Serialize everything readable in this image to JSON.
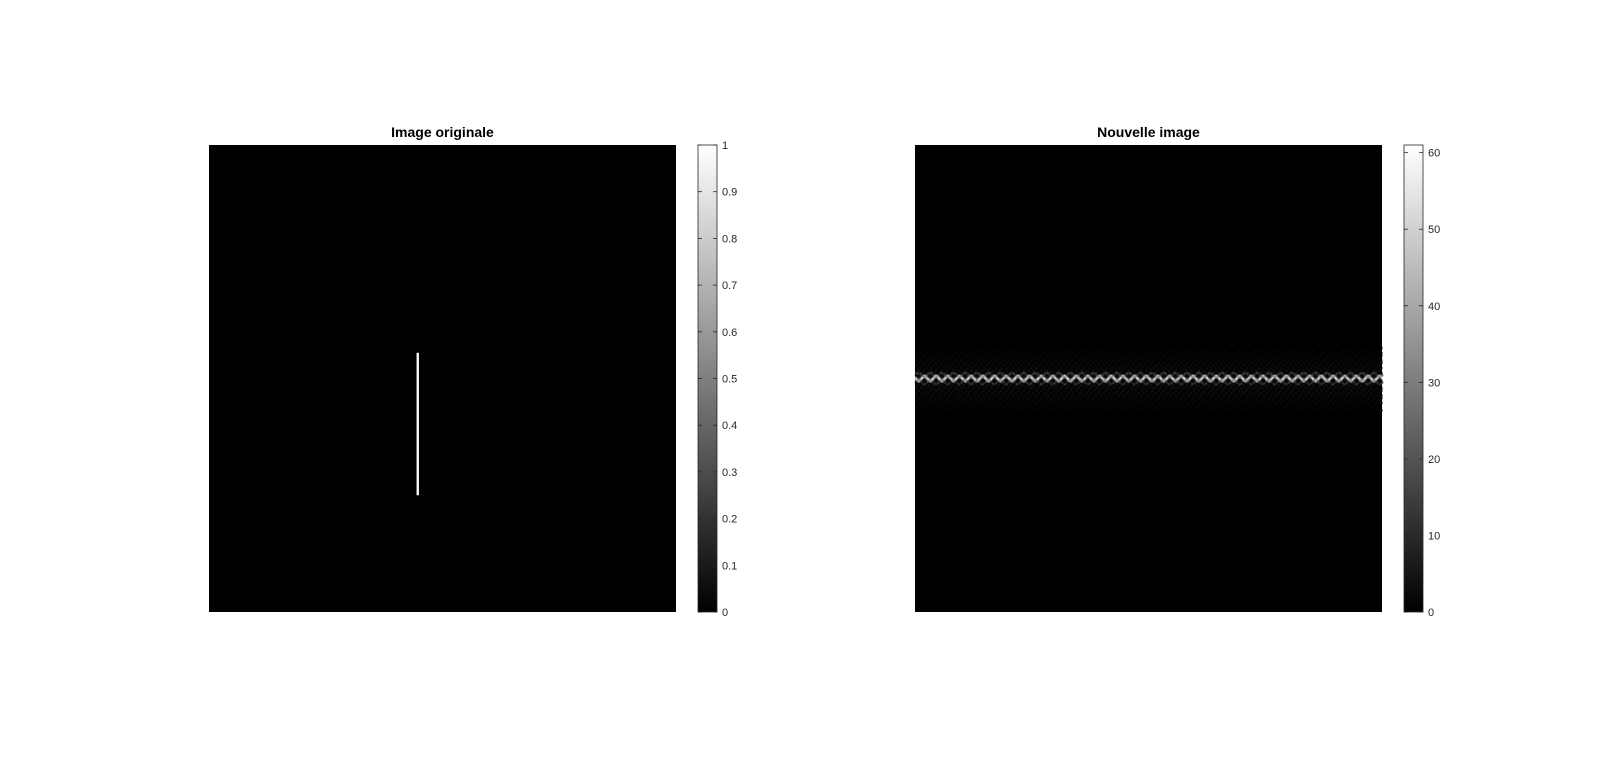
{
  "chart_data": [
    {
      "type": "heatmap",
      "title": "Image originale",
      "colormap": "gray",
      "background_value": 0,
      "color_limits": [
        0,
        1
      ],
      "colorbar_ticks": [
        0,
        0.1,
        0.2,
        0.3,
        0.4,
        0.5,
        0.6,
        0.7,
        0.8,
        0.9,
        1
      ],
      "colorbar_tick_labels": [
        "0",
        "0.1",
        "0.2",
        "0.3",
        "0.4",
        "0.5",
        "0.6",
        "0.7",
        "0.8",
        "0.9",
        "1"
      ],
      "axes_visible": false,
      "features": [
        {
          "kind": "vertical-line",
          "value": 1,
          "x": 0.447,
          "y_range": [
            0.445,
            0.75
          ],
          "thickness": 0.005
        }
      ]
    },
    {
      "type": "heatmap",
      "title": "Nouvelle image",
      "colormap": "gray",
      "background_value": 0,
      "color_limits": [
        0,
        61
      ],
      "colorbar_ticks": [
        0,
        10,
        20,
        30,
        40,
        50,
        60
      ],
      "colorbar_tick_labels": [
        "0",
        "10",
        "20",
        "30",
        "40",
        "50",
        "60"
      ],
      "axes_visible": false,
      "features": [
        {
          "kind": "horizontal-band",
          "center_y": 0.5,
          "peak_value": 61,
          "period": 0.025,
          "falloff": 0.25
        }
      ]
    }
  ]
}
